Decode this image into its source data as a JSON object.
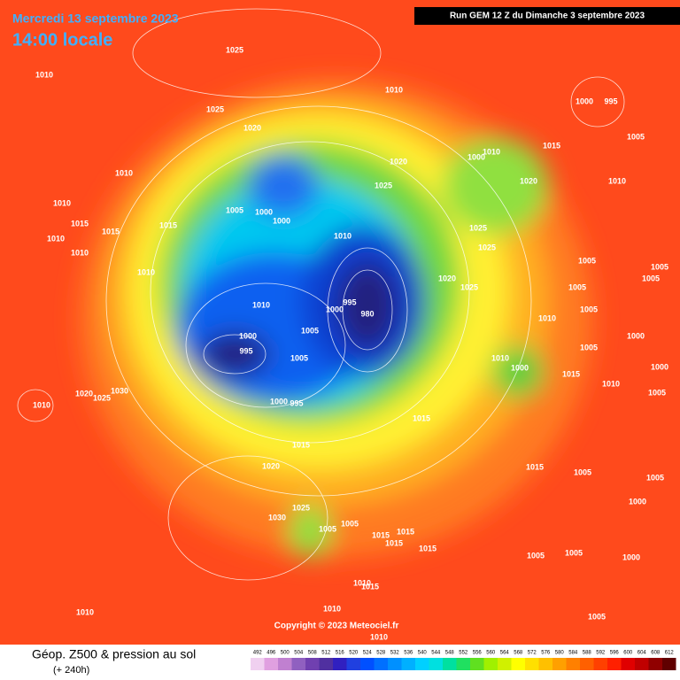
{
  "header": {
    "date": "Mercredi 13 septembre 2023",
    "time": "14:00 locale",
    "run": "Run GEM 12 Z du Dimanche 3 septembre 2023"
  },
  "copyright": "Copyright © 2023 Meteociel.fr",
  "footer": {
    "title": "Géop. Z500 & pression au sol",
    "lead": "(+ 240h)"
  },
  "isobars": [
    1025,
    1010,
    1010,
    1025,
    1000,
    995,
    1020,
    1015,
    1005,
    1020,
    1010,
    1000,
    1010,
    1025,
    1020,
    1010,
    1010,
    1005,
    1000,
    1000,
    1015,
    1015,
    1015,
    1010,
    1010,
    1025,
    1025,
    1010,
    1005,
    1005,
    1010,
    1020,
    1025,
    1005,
    1005,
    1010,
    1000,
    995,
    980,
    1005,
    1010,
    1000,
    1005,
    995,
    1005,
    1000,
    1005,
    1010,
    1000,
    1000,
    1015,
    1010,
    1005,
    1020,
    1030,
    1025,
    1010,
    1000,
    995,
    1015,
    1015,
    1015,
    1005,
    1020,
    1005,
    1000,
    1025,
    1030,
    1005,
    1005,
    1015,
    1015,
    1015,
    1015,
    1005,
    1005,
    1000,
    1010,
    1015,
    1010,
    1010,
    1005,
    1010
  ],
  "scale": {
    "labels": [
      492,
      496,
      500,
      504,
      508,
      512,
      516,
      520,
      524,
      528,
      532,
      536,
      540,
      544,
      548,
      552,
      556,
      560,
      564,
      568,
      572,
      576,
      580,
      584,
      588,
      592,
      596,
      600,
      604,
      608,
      612
    ],
    "colors": [
      "#f0d0f0",
      "#e0a0e0",
      "#c080d0",
      "#9060c0",
      "#7040b0",
      "#5030a0",
      "#3020c0",
      "#2040e0",
      "#0050ff",
      "#0070ff",
      "#0090ff",
      "#00b0ff",
      "#00d0ff",
      "#00e0e0",
      "#00e0a0",
      "#20e060",
      "#60e020",
      "#a0f000",
      "#d0f000",
      "#ffff00",
      "#ffe000",
      "#ffc000",
      "#ffa000",
      "#ff8000",
      "#ff6000",
      "#ff4000",
      "#ff2000",
      "#e00000",
      "#c00000",
      "#900000",
      "#600000"
    ]
  }
}
